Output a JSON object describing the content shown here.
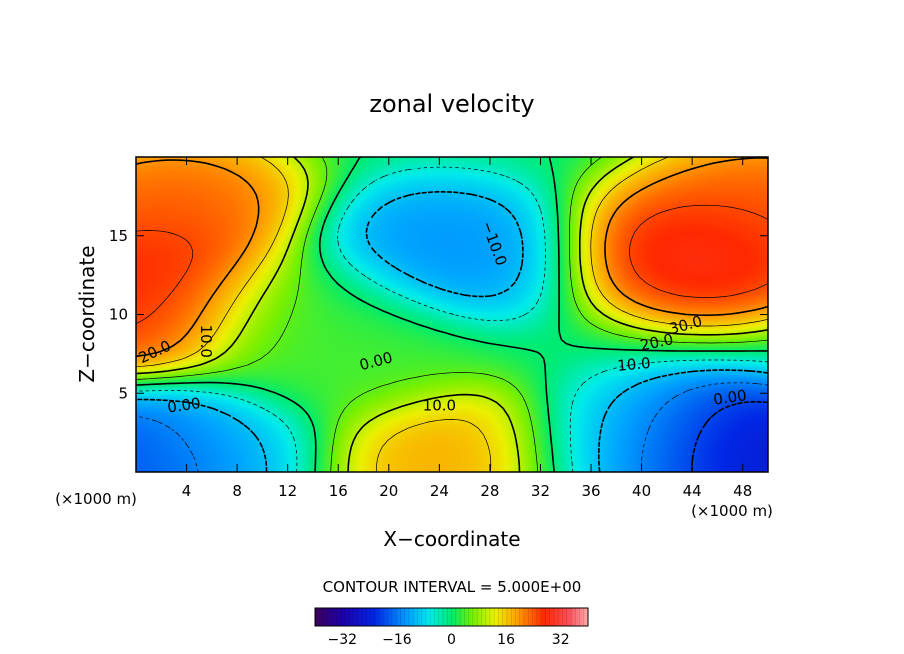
{
  "chart_data": {
    "type": "heatmap",
    "title": "zonal velocity",
    "xlabel": "X−coordinate",
    "ylabel": "Z−coordinate",
    "x_unit_left": "(×1000 m)",
    "x_unit_right": "(×1000 m)",
    "xlim": [
      0,
      50
    ],
    "ylim": [
      0,
      20
    ],
    "x_ticks": [
      "4",
      "8",
      "12",
      "16",
      "20",
      "24",
      "28",
      "32",
      "36",
      "40",
      "44",
      "48"
    ],
    "y_ticks": [
      "5",
      "10",
      "15"
    ],
    "contour_interval_text": "CONTOUR INTERVAL = 5.000E+00",
    "colorbar": {
      "range": [
        -40,
        40
      ],
      "tick_labels": [
        "−32",
        "−16",
        "0",
        "16",
        "32"
      ]
    },
    "contour_labels": [
      "20.0",
      "10.0",
      "0.00",
      "0.00",
      "10.0",
      "−10.0",
      "30.0",
      "20.0",
      "10.0",
      "0.00"
    ],
    "field_features": [
      {
        "x": 1.5,
        "z": 13,
        "value": 30
      },
      {
        "x": 3,
        "z": 17,
        "value": 25
      },
      {
        "x": 0.5,
        "z": 10,
        "value": 28
      },
      {
        "x": 1.5,
        "z": 1,
        "value": -25
      },
      {
        "x": 6,
        "z": 1.5,
        "value": -8
      },
      {
        "x": 24,
        "z": 14,
        "value": -15
      },
      {
        "x": 24,
        "z": 1,
        "value": 20
      },
      {
        "x": 45,
        "z": 14,
        "value": 32
      },
      {
        "x": 50,
        "z": 17,
        "value": 25
      },
      {
        "x": 46,
        "z": 1.2,
        "value": -32
      },
      {
        "x": 40,
        "z": 1.5,
        "value": -8
      },
      {
        "x": 13,
        "z": 10,
        "value": 3
      },
      {
        "x": 16,
        "z": 7,
        "value": 4
      }
    ]
  }
}
